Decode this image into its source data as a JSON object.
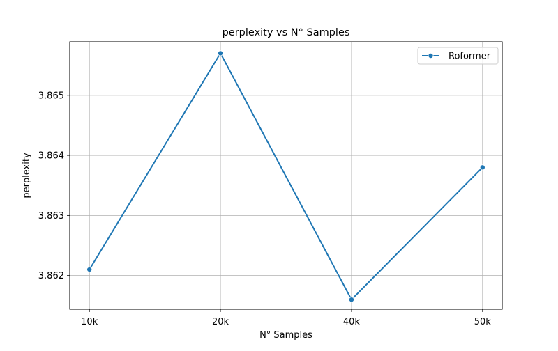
{
  "chart_data": {
    "type": "line",
    "title": "perplexity vs N° Samples",
    "xlabel": "N° Samples",
    "ylabel": "perplexity",
    "categories": [
      "10k",
      "20k",
      "40k",
      "50k"
    ],
    "series": [
      {
        "name": "Roformer",
        "values": [
          3.8621,
          3.8657,
          3.8616,
          3.8638
        ],
        "color": "#1f77b4",
        "marker": "circle"
      }
    ],
    "yticks": [
      3.862,
      3.863,
      3.864,
      3.865
    ],
    "ytick_labels": [
      "3.862",
      "3.863",
      "3.864",
      "3.865"
    ],
    "ylim": [
      3.86144,
      3.86589
    ],
    "grid": true,
    "legend_position": "top-right"
  }
}
